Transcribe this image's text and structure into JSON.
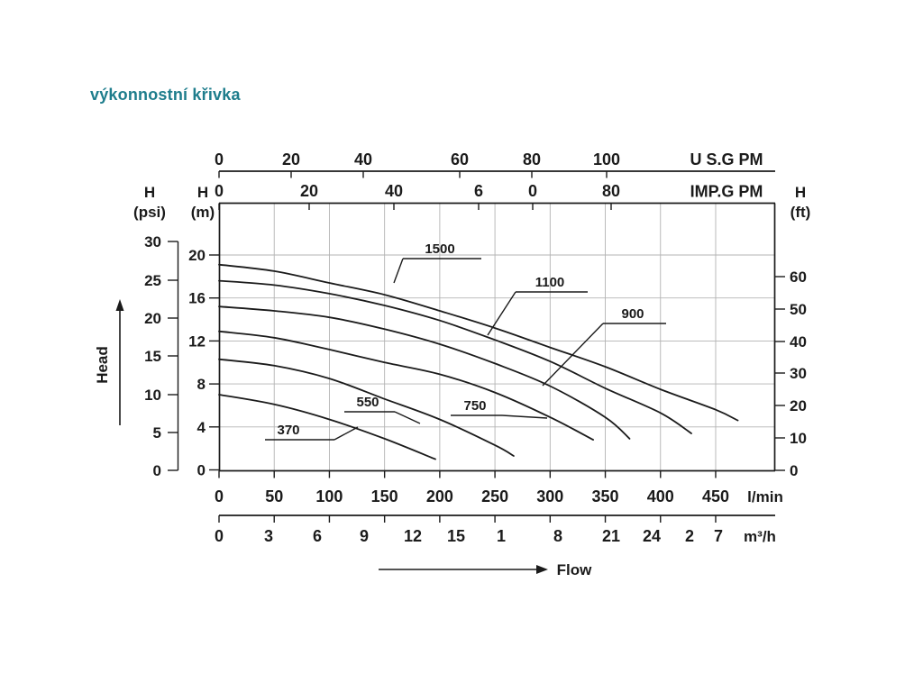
{
  "page": {
    "title": "výkonnostní křivka",
    "title_color": "#1e7d8c"
  },
  "chart_data": {
    "type": "line",
    "title": "výkonnostní křivka",
    "head_axis_label": "Head",
    "flow_axis_label": "Flow",
    "grid": true,
    "x_range_lmin": [
      0,
      450
    ],
    "y_range_m": [
      0,
      20
    ],
    "axes": {
      "us_gpm": {
        "unit": "U S.G PM",
        "ticks": [
          "0",
          "20",
          "40",
          "60",
          "80",
          "100"
        ]
      },
      "imp_gpm": {
        "unit": "IMP.G PM",
        "ticks": [
          "0",
          "20",
          "40",
          "6",
          "0",
          "80"
        ]
      },
      "psi": {
        "name": "H",
        "unit": "(psi)",
        "ticks": [
          "30",
          "25",
          "20",
          "15",
          "10",
          "5",
          "0"
        ]
      },
      "m": {
        "name": "H",
        "unit": "(m)",
        "ticks": [
          "20",
          "16",
          "12",
          "8",
          "4",
          "0"
        ]
      },
      "ft": {
        "name": "H",
        "unit": "(ft)",
        "ticks": [
          "60",
          "50",
          "40",
          "30",
          "20",
          "10",
          "0"
        ]
      },
      "l_min": {
        "unit": "l/min",
        "ticks": [
          "0",
          "50",
          "100",
          "150",
          "200",
          "250",
          "300",
          "350",
          "400",
          "450"
        ]
      },
      "m3_h": {
        "unit": "m³/h",
        "ticks": [
          "0",
          "3",
          "6",
          "9",
          "12",
          "15",
          "1",
          "8",
          "21",
          "24",
          "2",
          "7"
        ]
      }
    },
    "series": [
      {
        "name": "370",
        "points": [
          [
            0,
            7.0
          ],
          [
            50,
            6.1
          ],
          [
            100,
            4.7
          ],
          [
            150,
            2.9
          ],
          [
            196,
            1.0
          ]
        ]
      },
      {
        "name": "550",
        "points": [
          [
            0,
            10.3
          ],
          [
            50,
            9.7
          ],
          [
            100,
            8.5
          ],
          [
            150,
            6.6
          ],
          [
            200,
            4.7
          ],
          [
            250,
            2.3
          ],
          [
            267,
            1.3
          ]
        ]
      },
      {
        "name": "750",
        "points": [
          [
            0,
            12.9
          ],
          [
            50,
            12.3
          ],
          [
            100,
            11.2
          ],
          [
            150,
            10.0
          ],
          [
            200,
            8.9
          ],
          [
            250,
            7.2
          ],
          [
            300,
            4.9
          ],
          [
            339,
            2.8
          ]
        ]
      },
      {
        "name": "900",
        "points": [
          [
            0,
            15.2
          ],
          [
            50,
            14.8
          ],
          [
            100,
            14.2
          ],
          [
            150,
            13.1
          ],
          [
            200,
            11.7
          ],
          [
            250,
            9.9
          ],
          [
            300,
            7.8
          ],
          [
            350,
            4.9
          ],
          [
            372,
            2.9
          ]
        ]
      },
      {
        "name": "1100",
        "points": [
          [
            0,
            17.6
          ],
          [
            50,
            17.2
          ],
          [
            100,
            16.4
          ],
          [
            150,
            15.3
          ],
          [
            200,
            13.9
          ],
          [
            250,
            12.1
          ],
          [
            300,
            10.1
          ],
          [
            350,
            7.6
          ],
          [
            400,
            5.3
          ],
          [
            428,
            3.4
          ]
        ]
      },
      {
        "name": "1500",
        "points": [
          [
            0,
            19.1
          ],
          [
            50,
            18.5
          ],
          [
            100,
            17.4
          ],
          [
            150,
            16.3
          ],
          [
            200,
            14.8
          ],
          [
            250,
            13.2
          ],
          [
            300,
            11.4
          ],
          [
            350,
            9.6
          ],
          [
            400,
            7.5
          ],
          [
            450,
            5.6
          ],
          [
            470,
            4.6
          ]
        ]
      }
    ]
  }
}
